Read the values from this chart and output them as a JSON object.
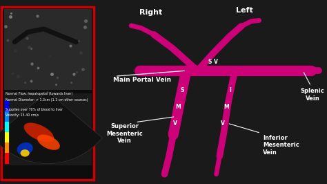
{
  "bg_color": "#1a1a1a",
  "vein_color": "#cc0077",
  "text_color": "#ffffff",
  "box_border_color": "#cc0000",
  "labels": {
    "right": "Right",
    "left": "Left",
    "main_portal_vein": "Main Portal Vein",
    "sv_label": "S V",
    "smv_s": "S",
    "smv_m": "M",
    "smv_v": "V",
    "imv_i": "I",
    "imv_m": "M",
    "imv_v": "V",
    "superior_mesenteric_vein": "Superior\nMesenteric\nVein",
    "splenic_vein": "Splenic\nVein",
    "inferior_mesenteric_vein": "Inferior\nMesenteric\nVein"
  },
  "info_text_line1": "Normal Flow: hepatopetal (towards liver)",
  "info_text_line2": "Normal Diameter: > 1.3cm (1.1 cm other sources)",
  "info_text_line3": "Supplies over 70% of blood to liver",
  "info_text_line4": "Velocity: 15-40 cm/s",
  "colorbar_colors": [
    "#ff0000",
    "#ff8800",
    "#ffff00",
    "#00ffff",
    "#0088ff",
    "#0000ff"
  ],
  "doppler_colors": [
    "#cc2200",
    "#ff4400",
    "#0033cc",
    "#ffcc00"
  ]
}
